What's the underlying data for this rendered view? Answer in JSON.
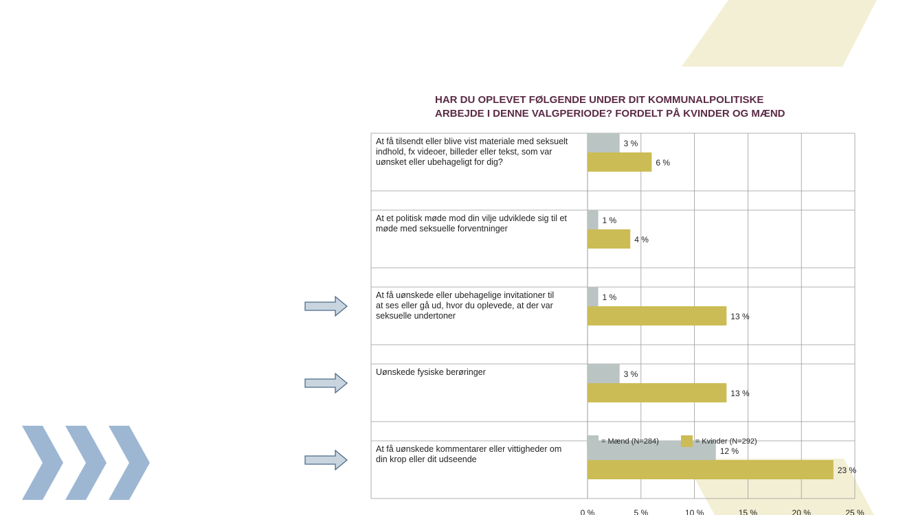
{
  "chart_data": {
    "type": "bar",
    "orientation": "horizontal",
    "title_lines": [
      "HAR DU OPLEVET FØLGENDE UNDER DIT KOMMUNALPOLITISKE",
      "ARBEJDE I DENNE VALGPERIODE? FORDELT PÅ KVINDER OG MÆND"
    ],
    "categories": [
      [
        "At få tilsendt eller blive vist materiale med seksuelt",
        "indhold, fx videoer, billeder eller tekst, som var",
        "uønsket eller ubehageligt for dig?"
      ],
      [
        "At et politisk møde mod din vilje udviklede sig til et",
        "møde med seksuelle forventninger"
      ],
      [
        "At få uønskede eller ubehagelige invitationer til",
        "at ses eller gå ud, hvor du oplevede, at der var",
        "seksuelle undertoner"
      ],
      [
        "Uønskede fysiske berøringer"
      ],
      [
        "At få uønskede kommentarer eller vittigheder om",
        "din krop eller dit udseende"
      ]
    ],
    "series": [
      {
        "name": "= Mænd (N=284)",
        "color": "#b9c4c3",
        "values": [
          3,
          1,
          1,
          3,
          12
        ],
        "labels": [
          "3 %",
          "1 %",
          "1 %",
          "3 %",
          "12 %"
        ]
      },
      {
        "name": "= Kvinder (N=292)",
        "color": "#cbbc55",
        "values": [
          6,
          4,
          13,
          13,
          23
        ],
        "labels": [
          "6 %",
          "4 %",
          "13 %",
          "13 %",
          "23 %"
        ]
      }
    ],
    "xlim": [
      0,
      25
    ],
    "xticks": [
      0,
      5,
      10,
      15,
      20,
      25
    ],
    "xtick_labels": [
      "0 %",
      "5 %",
      "10 %",
      "15 %",
      "20 %",
      "25 %"
    ],
    "grid": true,
    "legend_position": "bottom",
    "highlighted_rows": [
      2,
      3,
      4
    ]
  },
  "colors": {
    "arrow_fill": "#c9d5de",
    "arrow_stroke": "#4a6a8a",
    "chevron": "#9db7d3",
    "deco_shape": "#f3efd4",
    "title": "#5a2a44",
    "grid": "#999999"
  }
}
